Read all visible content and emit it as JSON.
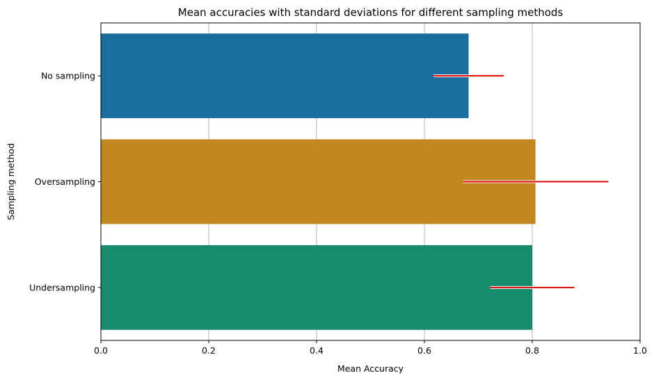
{
  "chart_data": {
    "type": "bar",
    "orientation": "horizontal",
    "title": "Mean accuracies with standard deviations for different sampling methods",
    "xlabel": "Mean Accuracy",
    "ylabel": "Sampling method",
    "categories": [
      "No sampling",
      "Oversampling",
      "Undersampling"
    ],
    "values": [
      0.682,
      0.806,
      0.8
    ],
    "error": [
      0.065,
      0.135,
      0.078
    ],
    "xlim": [
      0.0,
      1.0
    ],
    "xticks": [
      "0.0",
      "0.2",
      "0.4",
      "0.6",
      "0.8",
      "1.0"
    ],
    "grid": "vertical",
    "colors": {
      "bars": [
        "#1a6e9e",
        "#c2881f",
        "#178b6b"
      ],
      "error_bar": "#e00000",
      "grid": "#b0b0b0"
    }
  }
}
